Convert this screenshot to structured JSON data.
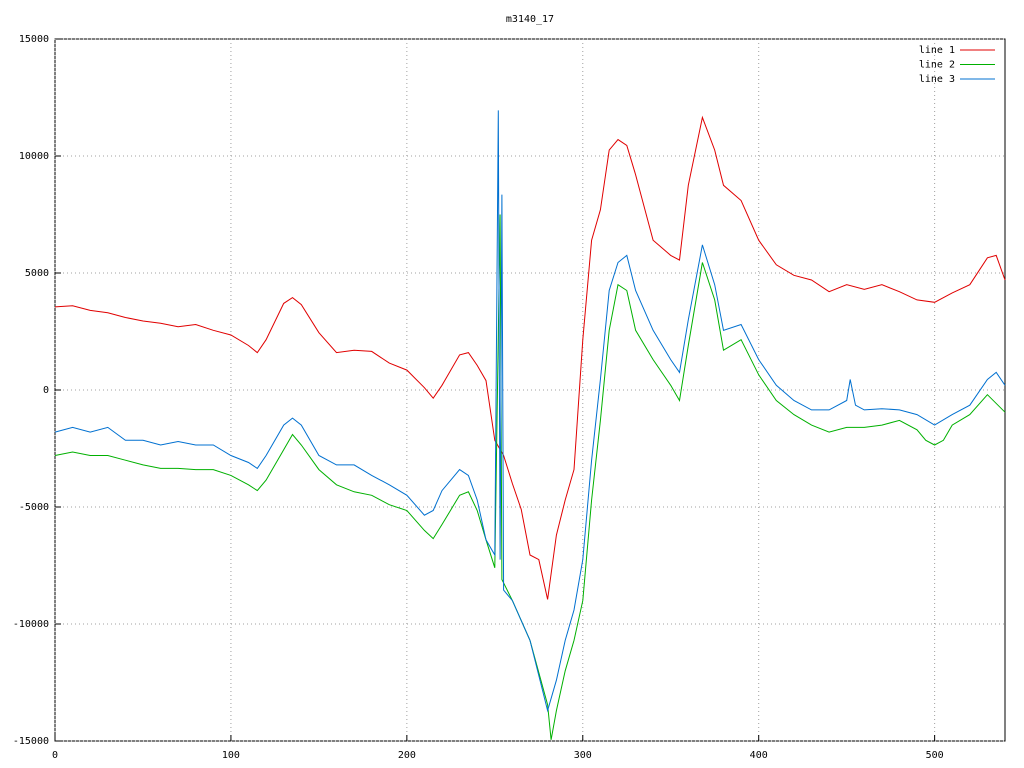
{
  "chart_data": {
    "type": "line",
    "title": "m3140_17",
    "xlim": [
      0,
      540
    ],
    "ylim": [
      -15000,
      15000
    ],
    "xticks": [
      0,
      100,
      200,
      300,
      400,
      500
    ],
    "yticks": [
      -15000,
      -10000,
      -5000,
      0,
      5000,
      10000,
      15000
    ],
    "grid": true,
    "legend": "top-right",
    "series": [
      {
        "name": "line 1",
        "color": "#e00000",
        "x": [
          0,
          10,
          20,
          30,
          40,
          50,
          60,
          70,
          80,
          90,
          100,
          110,
          115,
          120,
          130,
          135,
          140,
          150,
          160,
          170,
          180,
          190,
          200,
          210,
          215,
          220,
          230,
          235,
          240,
          245,
          250,
          255,
          260,
          265,
          270,
          275,
          280,
          285,
          290,
          295,
          300,
          305,
          310,
          315,
          320,
          325,
          330,
          340,
          350,
          355,
          360,
          368,
          375,
          380,
          390,
          400,
          410,
          420,
          430,
          440,
          450,
          460,
          470,
          480,
          490,
          500,
          510,
          520,
          530,
          535,
          540
        ],
        "values": [
          3550,
          3600,
          3400,
          3300,
          3100,
          2950,
          2850,
          2700,
          2800,
          2550,
          2350,
          1900,
          1600,
          2150,
          3700,
          3950,
          3650,
          2450,
          1600,
          1700,
          1650,
          1150,
          850,
          100,
          -350,
          200,
          1500,
          1600,
          1050,
          400,
          -2150,
          -2800,
          -4000,
          -5100,
          -7050,
          -7250,
          -8950,
          -6200,
          -4700,
          -3400,
          2150,
          6400,
          7700,
          10250,
          10700,
          10450,
          9200,
          6400,
          5750,
          5550,
          8750,
          11650,
          10250,
          8750,
          8100,
          6400,
          5350,
          4900,
          4700,
          4200,
          4500,
          4300,
          4500,
          4200,
          3850,
          3750,
          4150,
          4500,
          5650,
          5750,
          4700
        ]
      },
      {
        "name": "line 2",
        "color": "#00b000",
        "x": [
          0,
          10,
          20,
          30,
          40,
          50,
          60,
          70,
          80,
          90,
          100,
          110,
          115,
          120,
          130,
          135,
          140,
          150,
          160,
          170,
          180,
          190,
          200,
          210,
          215,
          220,
          230,
          235,
          240,
          245,
          250,
          253,
          254,
          260,
          270,
          280,
          282,
          285,
          290,
          295,
          300,
          305,
          310,
          315,
          320,
          325,
          330,
          340,
          350,
          355,
          360,
          368,
          375,
          380,
          390,
          400,
          410,
          420,
          430,
          440,
          450,
          460,
          470,
          480,
          490,
          495,
          500,
          505,
          510,
          520,
          530,
          540
        ],
        "values": [
          -2800,
          -2650,
          -2800,
          -2800,
          -3000,
          -3200,
          -3350,
          -3350,
          -3400,
          -3400,
          -3650,
          -4050,
          -4300,
          -3850,
          -2550,
          -1900,
          -2350,
          -3400,
          -4050,
          -4350,
          -4500,
          -4900,
          -5150,
          -6000,
          -6350,
          -5750,
          -4500,
          -4350,
          -5150,
          -6400,
          -7600,
          7500,
          -8100,
          -9000,
          -10700,
          -13450,
          -14950,
          -13700,
          -12000,
          -10700,
          -9000,
          -4700,
          -1300,
          2550,
          4500,
          4250,
          2550,
          1300,
          200,
          -450,
          1900,
          5450,
          3850,
          1700,
          2150,
          650,
          -450,
          -1050,
          -1500,
          -1800,
          -1600,
          -1600,
          -1500,
          -1300,
          -1700,
          -2150,
          -2350,
          -2150,
          -1500,
          -1050,
          -200,
          -950
        ]
      },
      {
        "name": "line 3",
        "color": "#0070d0",
        "x": [
          0,
          10,
          20,
          30,
          40,
          50,
          60,
          70,
          80,
          90,
          100,
          110,
          115,
          120,
          130,
          135,
          140,
          150,
          160,
          170,
          180,
          190,
          200,
          210,
          215,
          220,
          230,
          235,
          240,
          245,
          250,
          252,
          253,
          254,
          255,
          260,
          270,
          280,
          285,
          290,
          295,
          300,
          305,
          310,
          315,
          320,
          325,
          330,
          340,
          350,
          355,
          360,
          368,
          375,
          380,
          390,
          400,
          410,
          420,
          430,
          440,
          450,
          452,
          455,
          460,
          470,
          480,
          490,
          500,
          510,
          520,
          530,
          535,
          540
        ],
        "values": [
          -1800,
          -1600,
          -1800,
          -1600,
          -2150,
          -2150,
          -2350,
          -2200,
          -2350,
          -2350,
          -2800,
          -3100,
          -3350,
          -2800,
          -1500,
          -1200,
          -1500,
          -2800,
          -3200,
          -3200,
          -3650,
          -4050,
          -4500,
          -5350,
          -5150,
          -4300,
          -3400,
          -3650,
          -4700,
          -6400,
          -7050,
          11950,
          -7250,
          8350,
          -8550,
          -9000,
          -10700,
          -13700,
          -12400,
          -10700,
          -9400,
          -7250,
          -3000,
          450,
          4250,
          5450,
          5750,
          4250,
          2550,
          1300,
          750,
          3000,
          6200,
          4500,
          2550,
          2800,
          1300,
          200,
          -450,
          -850,
          -850,
          -450,
          450,
          -650,
          -850,
          -800,
          -850,
          -1050,
          -1500,
          -1050,
          -650,
          450,
          750,
          200
        ]
      }
    ]
  }
}
